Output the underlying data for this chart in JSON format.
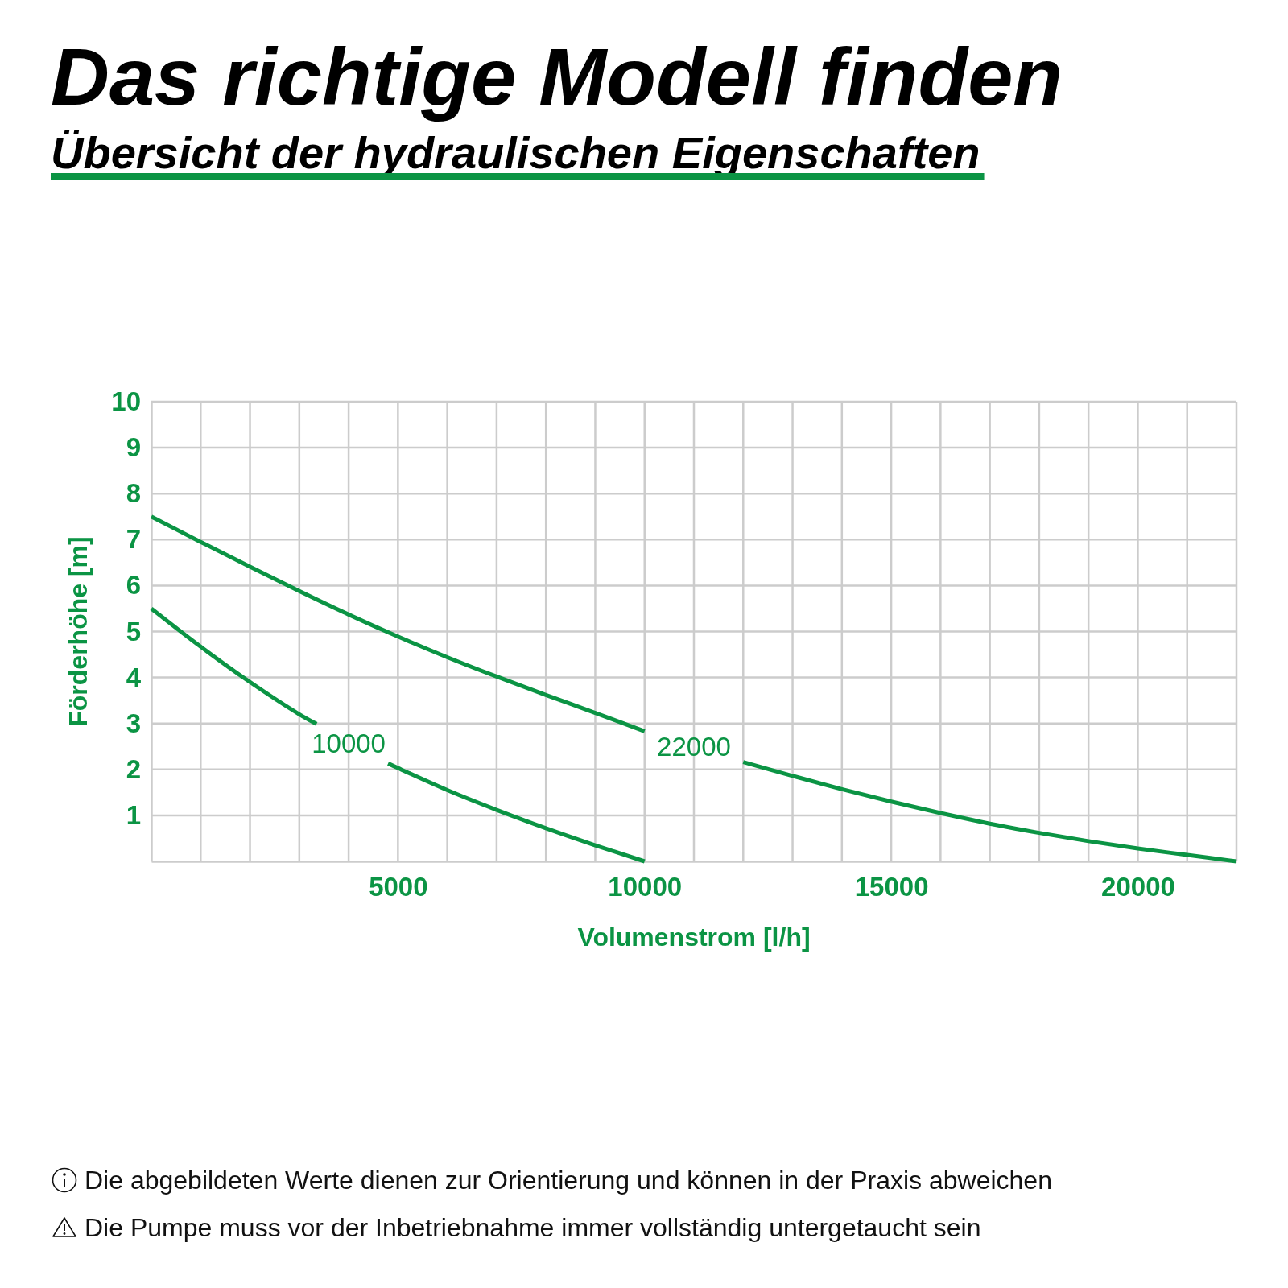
{
  "chart_data": {
    "type": "line",
    "title": "Das richtige Modell finden",
    "subtitle": "Übersicht der hydraulischen Eigenschaften",
    "xlabel": "Volumenstrom [l/h]",
    "ylabel": "Förderhöhe [m]",
    "xlim": [
      0,
      22000
    ],
    "ylim": [
      0,
      10
    ],
    "xticks": [
      {
        "value": 1000,
        "label": null
      },
      {
        "value": 2000,
        "label": null
      },
      {
        "value": 3000,
        "label": null
      },
      {
        "value": 4000,
        "label": null
      },
      5000,
      {
        "value": 6000,
        "label": null
      },
      {
        "value": 7000,
        "label": null
      },
      {
        "value": 8000,
        "label": null
      },
      {
        "value": 9000,
        "label": null
      },
      10000,
      {
        "value": 11000,
        "label": null
      },
      {
        "value": 12000,
        "label": null
      },
      {
        "value": 13000,
        "label": null
      },
      {
        "value": 14000,
        "label": null
      },
      15000,
      {
        "value": 16000,
        "label": null
      },
      {
        "value": 17000,
        "label": null
      },
      {
        "value": 18000,
        "label": null
      },
      {
        "value": 19000,
        "label": null
      },
      20000,
      {
        "value": 21000,
        "label": null
      },
      {
        "value": 22000,
        "label": null
      }
    ],
    "yticks": [
      1,
      2,
      3,
      4,
      5,
      6,
      7,
      8,
      9,
      10
    ],
    "grid": true,
    "series": [
      {
        "name": "10000",
        "color": "#0b9444",
        "x": [
          0,
          1000,
          2000,
          3000,
          3350,
          4000,
          4800,
          5000,
          6000,
          7000,
          8000,
          9000,
          10000
        ],
        "values": [
          5.5,
          4.67,
          3.9,
          3.2,
          2.99,
          null,
          2.13,
          2.03,
          1.55,
          1.12,
          0.72,
          0.35,
          0
        ]
      },
      {
        "name": "22000",
        "color": "#0b9444",
        "x": [
          0,
          1000,
          2000,
          3000,
          4000,
          5000,
          6000,
          7000,
          8000,
          9000,
          10000,
          11000,
          12000,
          13000,
          14000,
          15000,
          16000,
          17000,
          18000,
          19000,
          20000,
          21000,
          22000
        ],
        "values": [
          7.5,
          6.95,
          6.41,
          5.88,
          5.37,
          4.89,
          4.44,
          4.02,
          3.62,
          3.23,
          2.83,
          null,
          2.16,
          1.86,
          1.57,
          1.3,
          1.05,
          0.82,
          0.62,
          0.44,
          0.28,
          0.14,
          0
        ]
      }
    ],
    "annotations": [
      "Die abgebildeten Werte dienen zur Orientierung und können in der Praxis abweichen",
      "Die Pumpe muss vor der Inbetriebnahme immer vollständig untergetaucht sein"
    ]
  }
}
